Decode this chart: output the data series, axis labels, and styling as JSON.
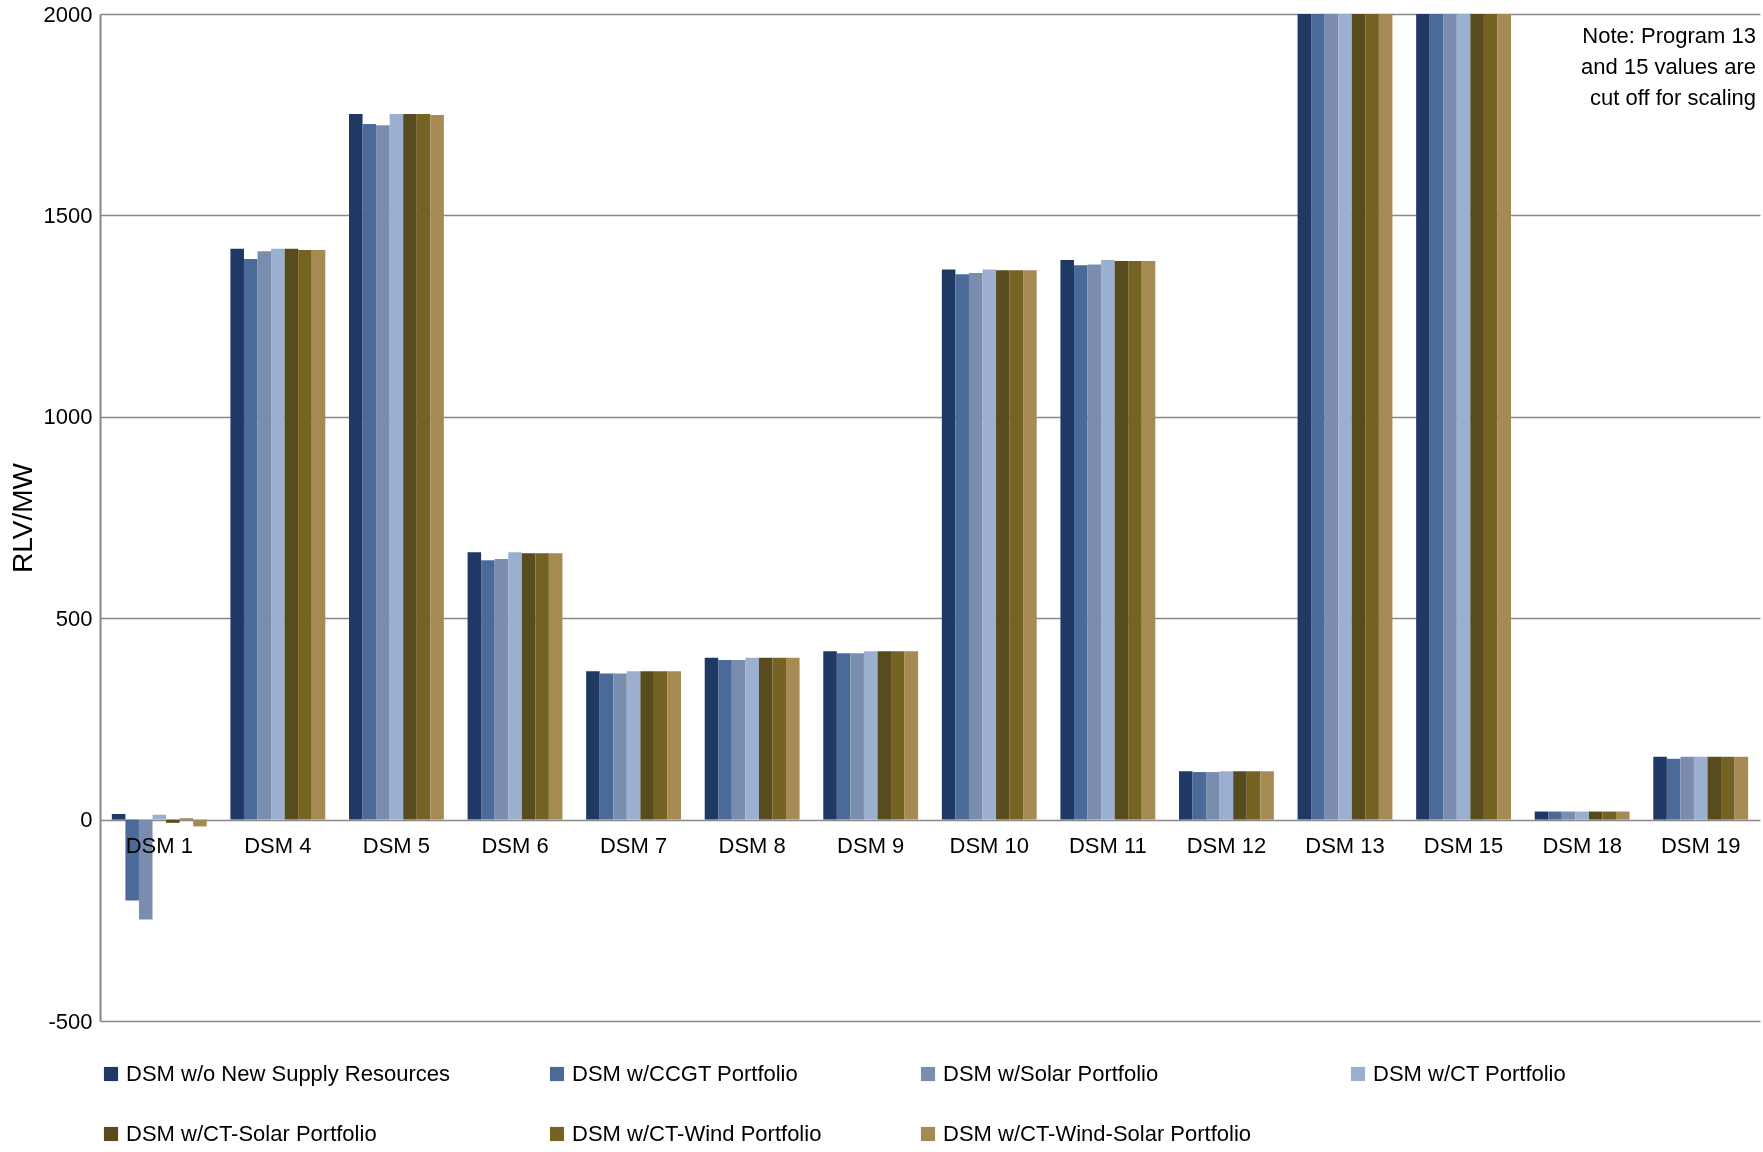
{
  "chart_data": {
    "type": "bar",
    "ylabel": "RLV/MW",
    "categories": [
      "DSM 1",
      "DSM 4",
      "DSM 5",
      "DSM 6",
      "DSM 7",
      "DSM 8",
      "DSM 9",
      "DSM 10",
      "DSM 11",
      "DSM 12",
      "DSM 13",
      "DSM 15",
      "DSM 18",
      "DSM 19"
    ],
    "series": [
      {
        "name": "DSM w/o New Supply Resources",
        "color": "#203864",
        "values": [
          14,
          1417,
          1752,
          664,
          368,
          402,
          418,
          1366,
          1389,
          120,
          2000,
          2000,
          20,
          156
        ]
      },
      {
        "name": "DSM w/CCGT Portfolio",
        "color": "#4a6a9a",
        "values": [
          -201,
          1392,
          1727,
          644,
          363,
          396,
          413,
          1354,
          1376,
          118,
          2000,
          2000,
          20,
          151
        ]
      },
      {
        "name": "DSM w/Solar Portfolio",
        "color": "#7a8daf",
        "values": [
          -248,
          1411,
          1724,
          647,
          363,
          396,
          413,
          1357,
          1378,
          118,
          2000,
          2000,
          20,
          156
        ]
      },
      {
        "name": "DSM w/CT Portfolio",
        "color": "#9bb0d0",
        "values": [
          12,
          1417,
          1752,
          664,
          368,
          402,
          418,
          1366,
          1389,
          120,
          2000,
          2000,
          20,
          156
        ]
      },
      {
        "name": "DSM w/CT-Solar Portfolio",
        "color": "#584c1f",
        "values": [
          -8,
          1417,
          1752,
          661,
          368,
          402,
          418,
          1364,
          1387,
          120,
          2000,
          2000,
          20,
          156
        ]
      },
      {
        "name": "DSM w/CT-Wind Portfolio",
        "color": "#746322",
        "values": [
          3,
          1414,
          1752,
          661,
          368,
          402,
          418,
          1364,
          1387,
          120,
          2000,
          2000,
          20,
          156
        ]
      },
      {
        "name": "DSM w/CT-Wind-Solar Portfolio",
        "color": "#a68a53",
        "values": [
          -17,
          1414,
          1749,
          661,
          368,
          402,
          418,
          1364,
          1387,
          120,
          2000,
          2000,
          20,
          156
        ]
      }
    ],
    "ylim": [
      -500,
      2000
    ],
    "yticks": [
      -500,
      0,
      500,
      1000,
      1500,
      2000
    ],
    "grid": "y",
    "legend": "bottom",
    "annotations": [
      "Note: Program 13 and 15 values are cut off for scaling"
    ]
  }
}
